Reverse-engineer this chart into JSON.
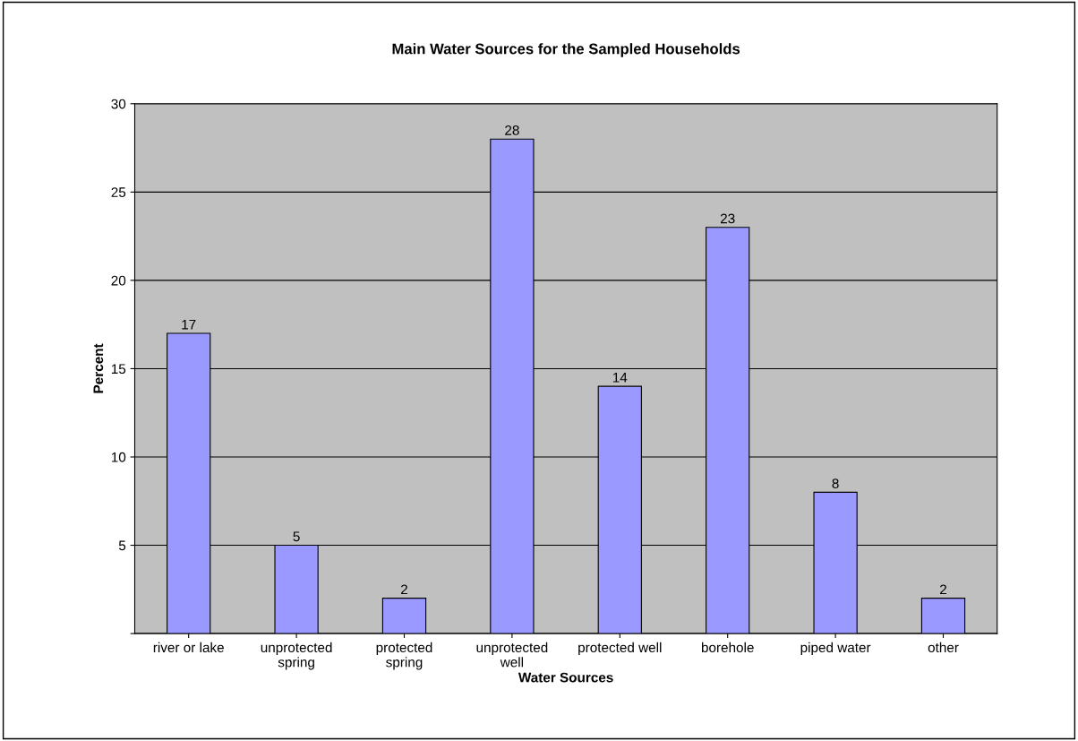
{
  "chart_data": {
    "type": "bar",
    "title": "Main Water Sources for the Sampled Households",
    "xlabel": "Water Sources",
    "ylabel": "Percent",
    "categories": [
      "river or lake",
      "unprotected spring",
      "protected spring",
      "unprotected well",
      "protected well",
      "borehole",
      "piped water",
      "other"
    ],
    "values": [
      17,
      5,
      2,
      28,
      14,
      23,
      8,
      2
    ],
    "color": "#9999ff",
    "ylim": [
      0,
      30
    ],
    "yticks": [
      {
        "value": 0,
        "label": null
      },
      5,
      10,
      15,
      20,
      25,
      30
    ],
    "grid": "y",
    "data_labels": true
  }
}
